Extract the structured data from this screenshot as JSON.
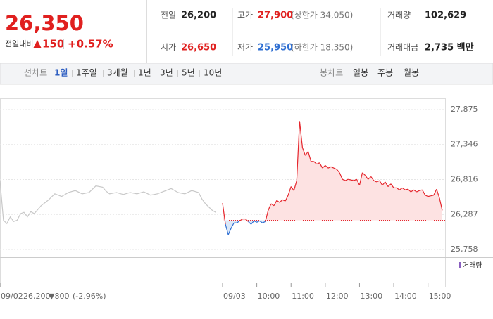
{
  "header": {
    "price": "26,350",
    "change_label": "전일대비",
    "change": "150",
    "change_pct": "+0.57%"
  },
  "info": [
    {
      "label": "전일",
      "value": "26,200"
    },
    {
      "label": "고가",
      "value": "27,900",
      "note": "(상한가 34,050)"
    },
    {
      "label": "거래량",
      "value": "102,629"
    },
    {
      "label": "시가",
      "value": "26,650"
    },
    {
      "label": "저가",
      "value": "25,950",
      "note": "(하한가 18,350)"
    },
    {
      "label": "거래대금",
      "value": "2,735 백만"
    }
  ],
  "tabs": {
    "line_label": "선차트",
    "line_periods": [
      "1일",
      "1주일",
      "3개월",
      "1년",
      "3년",
      "5년",
      "10년"
    ],
    "candle_label": "봉차트",
    "candle_periods": [
      "일봉",
      "주봉",
      "월봉"
    ]
  },
  "chart_data": {
    "type": "line",
    "ylim": [
      25758,
      27875
    ],
    "yticks": [
      {
        "value": 25758,
        "label": "25,758"
      },
      {
        "value": 26287,
        "label": "26,287"
      },
      {
        "value": 26816,
        "label": "26,816"
      },
      {
        "value": 27346,
        "label": "27,346"
      },
      {
        "value": 27875,
        "label": "27,875"
      }
    ],
    "xlim": [
      0,
      780
    ],
    "xticks": [
      {
        "value": 0,
        "label": "09/02"
      },
      {
        "value": 390,
        "label": "09/03"
      },
      {
        "value": 450,
        "label": "10:00"
      },
      {
        "value": 510,
        "label": "11:00"
      },
      {
        "value": 570,
        "label": "12:00"
      },
      {
        "value": 630,
        "label": "13:00"
      },
      {
        "value": 690,
        "label": "14:00"
      },
      {
        "value": 750,
        "label": "15:00"
      }
    ],
    "grid": true,
    "baseline": 26200,
    "series": [
      {
        "color": "#c8c8c8",
        "x": [
          0,
          6,
          12,
          18,
          24,
          30,
          36,
          42,
          48,
          54,
          60,
          72,
          84,
          96,
          108,
          120,
          132,
          144,
          156,
          168,
          180,
          186,
          192,
          204,
          216,
          228,
          240,
          252,
          264,
          276,
          288,
          300,
          312,
          324,
          336,
          348,
          354,
          360,
          366,
          372,
          378
        ],
        "values": [
          26800,
          26200,
          26150,
          26250,
          26180,
          26200,
          26300,
          26320,
          26250,
          26330,
          26300,
          26420,
          26500,
          26600,
          26560,
          26620,
          26650,
          26600,
          26620,
          26720,
          26700,
          26640,
          26600,
          26620,
          26590,
          26620,
          26600,
          26630,
          26580,
          26600,
          26640,
          26680,
          26620,
          26600,
          26650,
          26620,
          26520,
          26450,
          26400,
          26350,
          26320
        ]
      },
      {
        "color": "#e5262d",
        "down_color": "#2f6fd2",
        "fill": "#fde2e2",
        "down_fill": "#dbe7f7",
        "x": [
          390,
          395,
          400,
          405,
          410,
          415,
          420,
          425,
          430,
          435,
          440,
          445,
          450,
          455,
          460,
          465,
          470,
          475,
          480,
          485,
          490,
          495,
          500,
          505,
          510,
          515,
          520,
          525,
          530,
          535,
          540,
          545,
          550,
          555,
          560,
          565,
          570,
          575,
          580,
          585,
          590,
          595,
          600,
          605,
          610,
          615,
          620,
          625,
          630,
          635,
          640,
          645,
          650,
          655,
          660,
          665,
          670,
          675,
          680,
          685,
          690,
          695,
          700,
          705,
          710,
          715,
          720,
          725,
          730,
          735,
          740,
          745,
          750,
          755,
          760,
          765,
          770,
          775
        ],
        "values": [
          26460,
          26140,
          25980,
          26080,
          26160,
          26160,
          26190,
          26220,
          26220,
          26180,
          26140,
          26190,
          26170,
          26190,
          26160,
          26180,
          26350,
          26450,
          26420,
          26500,
          26470,
          26510,
          26490,
          26580,
          26710,
          26650,
          26800,
          27700,
          27300,
          27180,
          27240,
          27090,
          27090,
          27050,
          27070,
          26990,
          27030,
          26990,
          27010,
          26990,
          26970,
          26920,
          26820,
          26800,
          26820,
          26810,
          26800,
          26820,
          26730,
          26920,
          26880,
          26820,
          26860,
          26800,
          26780,
          26800,
          26730,
          26780,
          26710,
          26750,
          26690,
          26690,
          26660,
          26690,
          26660,
          26670,
          26630,
          26660,
          26630,
          26650,
          26660,
          26580,
          26560,
          26570,
          26580,
          26670,
          26540,
          26350
        ]
      }
    ],
    "volume_label": "거래량",
    "footer": {
      "close": "26,200",
      "change": "▼800",
      "change_pct": "(-2.96%)"
    }
  }
}
